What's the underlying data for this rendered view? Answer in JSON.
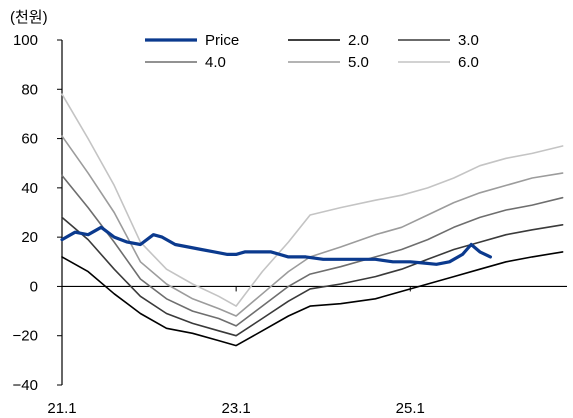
{
  "chart_data": {
    "type": "line",
    "unit_label": "(천원)",
    "ylim": [
      -40,
      100
    ],
    "yticks": [
      "100",
      "80",
      "60",
      "40",
      "20",
      "0",
      "−20",
      "−40"
    ],
    "ytick_values": [
      100,
      80,
      60,
      40,
      20,
      0,
      -20,
      -40
    ],
    "xlim": [
      2021.0,
      2026.8
    ],
    "xticks": [
      "21.1",
      "23.1",
      "25.1"
    ],
    "xtick_values": [
      2021.0,
      2023.0,
      2025.0
    ],
    "grid": false,
    "legend_position": "top",
    "series": [
      {
        "name": "Price",
        "color": "#0b3a8e",
        "x": [
          2021.0,
          2021.15,
          2021.3,
          2021.45,
          2021.6,
          2021.75,
          2021.9,
          2022.05,
          2022.15,
          2022.3,
          2022.45,
          2022.6,
          2022.75,
          2022.9,
          2023.0,
          2023.1,
          2023.25,
          2023.4,
          2023.6,
          2023.8,
          2024.0,
          2024.2,
          2024.4,
          2024.6,
          2024.8,
          2025.0,
          2025.15,
          2025.3,
          2025.45,
          2025.6,
          2025.7,
          2025.8,
          2025.92
        ],
        "y": [
          19,
          22,
          21,
          24,
          20,
          18,
          17,
          21,
          20,
          17,
          16,
          15,
          14,
          13,
          13,
          14,
          14,
          14,
          12,
          12,
          11,
          11,
          11,
          11,
          10,
          10,
          9.5,
          9,
          10,
          13,
          17,
          14,
          12
        ]
      },
      {
        "name": "2.0",
        "color": "#000000",
        "x": [
          2021.0,
          2021.3,
          2021.6,
          2021.9,
          2022.2,
          2022.5,
          2022.8,
          2023.0,
          2023.3,
          2023.6,
          2023.85,
          2024.2,
          2024.6,
          2024.9,
          2025.2,
          2025.5,
          2025.8,
          2026.1,
          2026.4,
          2026.75
        ],
        "y": [
          12,
          6,
          -3,
          -11,
          -17,
          -19,
          -22,
          -24,
          -18,
          -12,
          -8,
          -7,
          -5,
          -2,
          1,
          4,
          7,
          10,
          12,
          14
        ]
      },
      {
        "name": "3.0",
        "color": "#3a3a3a",
        "x": [
          2021.0,
          2021.3,
          2021.6,
          2021.9,
          2022.2,
          2022.5,
          2022.8,
          2023.0,
          2023.3,
          2023.6,
          2023.85,
          2024.2,
          2024.6,
          2024.9,
          2025.2,
          2025.5,
          2025.8,
          2026.1,
          2026.4,
          2026.75
        ],
        "y": [
          28,
          19,
          7,
          -4,
          -11,
          -15,
          -18,
          -20,
          -13,
          -6,
          -1,
          1,
          4,
          7,
          11,
          15,
          18,
          21,
          23,
          25
        ]
      },
      {
        "name": "4.0",
        "color": "#6e6e6e",
        "x": [
          2021.0,
          2021.3,
          2021.6,
          2021.9,
          2022.2,
          2022.5,
          2022.8,
          2023.0,
          2023.3,
          2023.6,
          2023.85,
          2024.2,
          2024.6,
          2024.9,
          2025.2,
          2025.5,
          2025.8,
          2026.1,
          2026.4,
          2026.75
        ],
        "y": [
          45,
          32,
          18,
          3,
          -5,
          -10,
          -13,
          -16,
          -8,
          0,
          5,
          8,
          12,
          15,
          19,
          24,
          28,
          31,
          33,
          36
        ]
      },
      {
        "name": "5.0",
        "color": "#9c9c9c",
        "x": [
          2021.0,
          2021.3,
          2021.6,
          2021.9,
          2022.2,
          2022.5,
          2022.8,
          2023.0,
          2023.3,
          2023.6,
          2023.85,
          2024.2,
          2024.6,
          2024.9,
          2025.2,
          2025.5,
          2025.8,
          2026.1,
          2026.4,
          2026.75
        ],
        "y": [
          61,
          46,
          30,
          10,
          1,
          -5,
          -9,
          -12,
          -3,
          6,
          12,
          16,
          21,
          24,
          29,
          34,
          38,
          41,
          44,
          46
        ]
      },
      {
        "name": "6.0",
        "color": "#c4c4c4",
        "x": [
          2021.0,
          2021.3,
          2021.6,
          2021.9,
          2022.2,
          2022.5,
          2022.8,
          2023.0,
          2023.3,
          2023.6,
          2023.85,
          2024.2,
          2024.6,
          2024.9,
          2025.2,
          2025.5,
          2025.8,
          2026.1,
          2026.4,
          2026.75
        ],
        "y": [
          78,
          60,
          41,
          18,
          7,
          1,
          -4,
          -8,
          6,
          18,
          29,
          32,
          35,
          37,
          40,
          44,
          49,
          52,
          54,
          57
        ]
      }
    ]
  }
}
